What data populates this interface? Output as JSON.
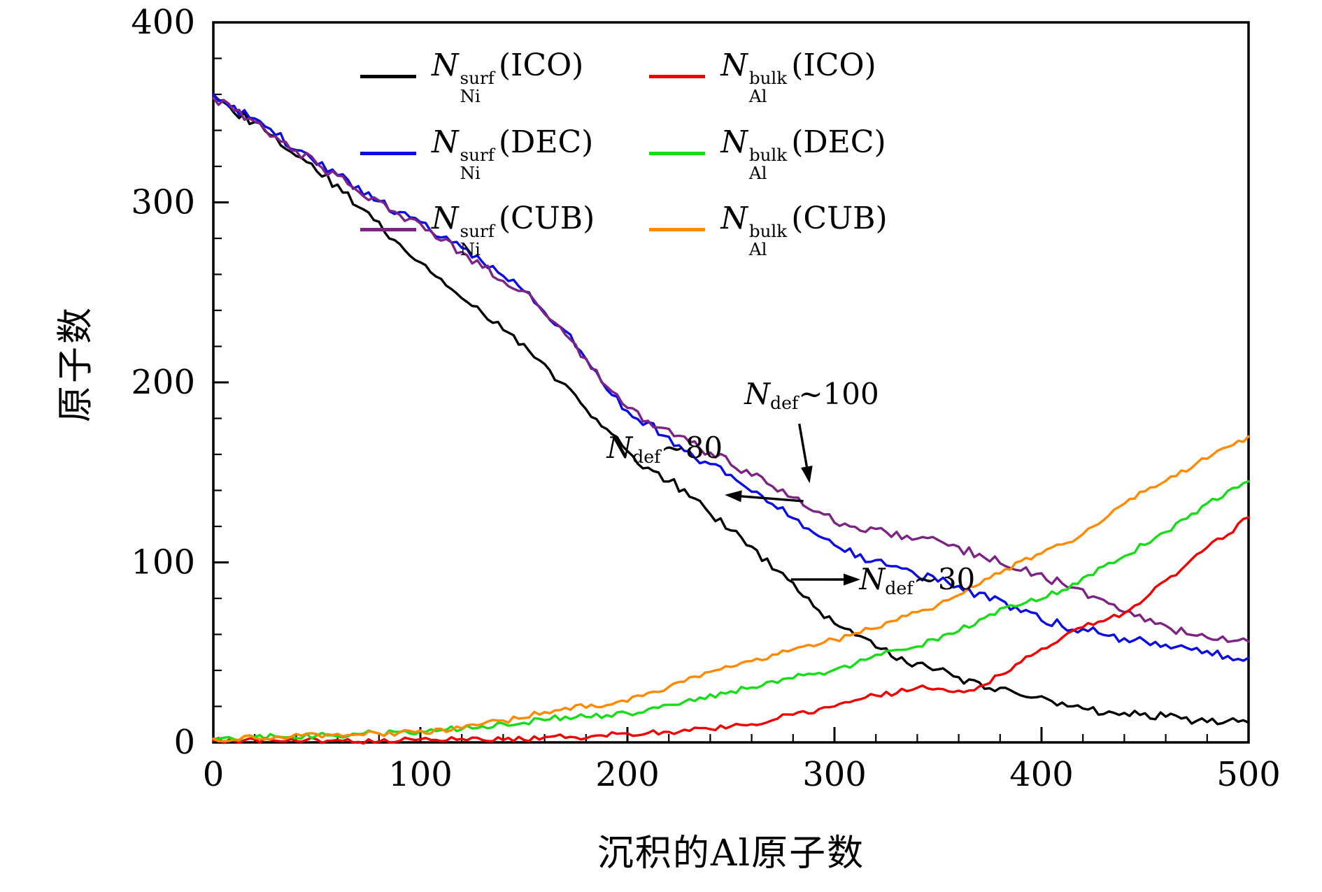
{
  "figure": {
    "background": "#ffffff"
  },
  "chart_data": {
    "type": "line",
    "title": "",
    "xlabel": "沉积的Al原子数",
    "ylabel": "原子数",
    "xlim": [
      0,
      500
    ],
    "ylim": [
      0,
      400
    ],
    "xticks": [
      0,
      100,
      200,
      300,
      400,
      500
    ],
    "yticks": [
      0,
      100,
      200,
      300,
      400
    ],
    "xminor": 20,
    "yminor": 20,
    "x_step": 10,
    "grid": false,
    "legend_position": "top-center",
    "frame_color": "#000000",
    "series": [
      {
        "name": "Ni-surf-ICO",
        "label": {
          "sym": "N",
          "sup": "surf",
          "sub": "Ni",
          "rest": "(ICO)"
        },
        "color": "#000000",
        "noise": 2.6,
        "values": [
          360,
          351,
          344,
          336,
          327,
          318,
          309,
          298,
          288,
          277,
          266,
          257,
          247,
          238,
          229,
          220,
          209,
          198,
          186,
          173,
          162,
          152,
          146,
          137,
          128,
          118,
          108,
          97,
          88,
          76,
          66,
          60,
          53,
          47,
          43,
          40,
          36,
          33,
          30,
          27,
          25,
          22,
          19,
          17,
          16,
          15,
          14,
          13,
          12,
          11,
          11
        ]
      },
      {
        "name": "Ni-surf-DEC",
        "label": {
          "sym": "N",
          "sup": "surf",
          "sub": "Ni",
          "rest": "(DEC)"
        },
        "color": "#0b0be6",
        "noise": 2.6,
        "values": [
          360,
          353,
          346,
          338,
          330,
          322,
          315,
          308,
          301,
          294,
          288,
          281,
          274,
          266,
          259,
          251,
          240,
          228,
          213,
          196,
          184,
          177,
          169,
          161,
          154,
          148,
          140,
          132,
          124,
          116,
          109,
          104,
          100,
          97,
          93,
          90,
          86,
          82,
          79,
          73,
          68,
          65,
          63,
          60,
          58,
          56,
          54,
          52,
          50,
          48,
          47
        ]
      },
      {
        "name": "Ni-surf-CUB",
        "label": {
          "sym": "N",
          "sup": "surf",
          "sub": "Ni",
          "rest": "(CUB)"
        },
        "color": "#7c2483",
        "noise": 2.6,
        "values": [
          358,
          352,
          345,
          337,
          329,
          321,
          314,
          307,
          300,
          293,
          287,
          280,
          272,
          265,
          257,
          250,
          238,
          226,
          213,
          197,
          185,
          179,
          173,
          167,
          161,
          155,
          149,
          143,
          136,
          129,
          123,
          120,
          118,
          116,
          114,
          112,
          108,
          104,
          100,
          96,
          93,
          88,
          84,
          79,
          73,
          68,
          64,
          61,
          58,
          57,
          56
        ]
      },
      {
        "name": "Al-bulk-ICO",
        "label": {
          "sym": "N",
          "sup": "bulk",
          "sub": "Al",
          "rest": "(ICO)"
        },
        "color": "#f20000",
        "noise": 1.6,
        "values": [
          1,
          1,
          1,
          1,
          1,
          1,
          1,
          1,
          1,
          1,
          1,
          1,
          2,
          2,
          2,
          2,
          3,
          3,
          3,
          4,
          5,
          5,
          6,
          7,
          8,
          9,
          10,
          13,
          15,
          17,
          20,
          23,
          26,
          28,
          30,
          30,
          28,
          31,
          38,
          45,
          52,
          58,
          64,
          68,
          72,
          80,
          90,
          98,
          108,
          116,
          125
        ]
      },
      {
        "name": "Al-bulk-DEC",
        "label": {
          "sym": "N",
          "sup": "bulk",
          "sub": "Al",
          "rest": "(DEC)"
        },
        "color": "#17dd17",
        "noise": 1.6,
        "values": [
          2,
          2,
          3,
          3,
          3,
          4,
          4,
          5,
          5,
          6,
          6,
          7,
          8,
          9,
          10,
          11,
          13,
          14,
          14,
          15,
          16,
          18,
          21,
          24,
          26,
          28,
          31,
          34,
          36,
          38,
          40,
          44,
          48,
          51,
          54,
          57,
          62,
          68,
          74,
          77,
          80,
          85,
          91,
          98,
          104,
          110,
          117,
          124,
          132,
          139,
          145
        ]
      },
      {
        "name": "Al-bulk-CUB",
        "label": {
          "sym": "N",
          "sup": "bulk",
          "sub": "Al",
          "rest": "(CUB)"
        },
        "color": "#ff8a00",
        "noise": 1.6,
        "values": [
          2,
          2,
          3,
          3,
          4,
          4,
          4,
          5,
          5,
          5,
          6,
          7,
          8,
          10,
          12,
          14,
          17,
          19,
          20,
          21,
          23,
          27,
          31,
          36,
          39,
          42,
          45,
          48,
          51,
          54,
          57,
          60,
          64,
          68,
          72,
          76,
          82,
          88,
          94,
          100,
          105,
          110,
          116,
          124,
          132,
          140,
          146,
          151,
          158,
          164,
          170
        ]
      }
    ],
    "annotations": [
      {
        "sym": "N",
        "sub": "def",
        "rest": "~100",
        "text_at": [
          289,
          193
        ],
        "arrow_from": [
          283,
          177
        ],
        "arrow_to": [
          288,
          144
        ]
      },
      {
        "sym": "N",
        "sub": "def",
        "rest": "~80",
        "text_at": [
          218,
          163
        ],
        "arrow_from": [
          285,
          134
        ],
        "arrow_to": [
          247,
          137.5
        ]
      },
      {
        "sym": "N",
        "sub": "def",
        "rest": "~30",
        "text_at": [
          340,
          90
        ],
        "arrow_from": [
          279,
          90.5
        ],
        "arrow_to": [
          312.5,
          90.5
        ]
      }
    ]
  }
}
